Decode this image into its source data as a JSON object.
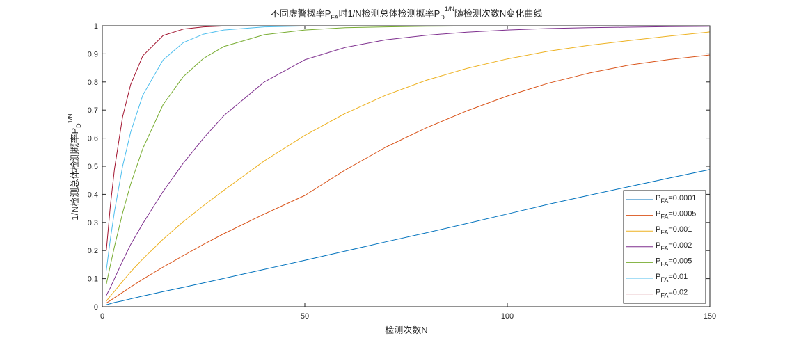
{
  "chart_data": {
    "type": "line",
    "title": {
      "part1": "不同虚警概率P",
      "part1_sub": "FA",
      "part2": "时1/N检测总体检测概率P",
      "part2_sub": "D",
      "part2_sup": "1/N",
      "part3": "随检测次数N变化曲线"
    },
    "xlabel": "检测次数N",
    "ylabel": {
      "main": "1/N检测总体检测概率P",
      "sub": "D",
      "sup": "1/N"
    },
    "xlim": [
      0,
      150
    ],
    "ylim": [
      0,
      1
    ],
    "xticks": [
      0,
      50,
      100,
      150
    ],
    "yticks": [
      0,
      0.1,
      0.2,
      0.3,
      0.4,
      0.5,
      0.6,
      0.7,
      0.8,
      0.9,
      1
    ],
    "xtick_labels": [
      "0",
      "50",
      "100",
      "150"
    ],
    "ytick_labels": [
      "0",
      "0.1",
      "0.2",
      "0.3",
      "0.4",
      "0.5",
      "0.6",
      "0.7",
      "0.8",
      "0.9",
      "1"
    ],
    "grid": false,
    "legend_position": "bottom-right",
    "x": [
      1,
      2,
      3,
      5,
      7,
      10,
      15,
      20,
      25,
      30,
      40,
      50,
      60,
      70,
      80,
      90,
      100,
      110,
      120,
      130,
      140,
      150
    ],
    "series": [
      {
        "name_prefix": "P",
        "name_sub": "FA",
        "name_suffix": "=0.0001",
        "color": "#0072BD",
        "values": [
          0.007,
          0.011,
          0.015,
          0.021,
          0.028,
          0.038,
          0.054,
          0.069,
          0.085,
          0.101,
          0.133,
          0.165,
          0.198,
          0.231,
          0.263,
          0.296,
          0.33,
          0.364,
          0.396,
          0.427,
          0.458,
          0.488
        ]
      },
      {
        "name_prefix": "P",
        "name_sub": "FA",
        "name_suffix": "=0.0005",
        "color": "#D95319",
        "values": [
          0.013,
          0.022,
          0.032,
          0.051,
          0.07,
          0.098,
          0.141,
          0.182,
          0.222,
          0.26,
          0.33,
          0.396,
          0.487,
          0.568,
          0.637,
          0.697,
          0.75,
          0.795,
          0.831,
          0.86,
          0.88,
          0.896
        ]
      },
      {
        "name_prefix": "P",
        "name_sub": "FA",
        "name_suffix": "=0.001",
        "color": "#EDB120",
        "values": [
          0.02,
          0.038,
          0.055,
          0.09,
          0.124,
          0.17,
          0.24,
          0.303,
          0.36,
          0.414,
          0.519,
          0.61,
          0.688,
          0.753,
          0.806,
          0.848,
          0.882,
          0.909,
          0.93,
          0.947,
          0.963,
          0.978
        ]
      },
      {
        "name_prefix": "P",
        "name_sub": "FA",
        "name_suffix": "=0.002",
        "color": "#7E2F8E",
        "values": [
          0.04,
          0.068,
          0.1,
          0.162,
          0.221,
          0.296,
          0.41,
          0.511,
          0.6,
          0.68,
          0.8,
          0.879,
          0.923,
          0.95,
          0.966,
          0.977,
          0.985,
          0.99,
          0.993,
          0.995,
          0.997,
          0.998
        ]
      },
      {
        "name_prefix": "P",
        "name_sub": "FA",
        "name_suffix": "=0.005",
        "color": "#77AC30",
        "values": [
          0.08,
          0.148,
          0.214,
          0.333,
          0.436,
          0.563,
          0.719,
          0.819,
          0.884,
          0.926,
          0.968,
          0.985,
          0.993,
          0.996,
          0.998,
          0.999,
          0.999,
          1.0,
          1.0,
          1.0,
          1.0,
          1.0
        ]
      },
      {
        "name_prefix": "P",
        "name_sub": "FA",
        "name_suffix": "=0.01",
        "color": "#4DBEEE",
        "values": [
          0.13,
          0.241,
          0.339,
          0.499,
          0.621,
          0.753,
          0.878,
          0.94,
          0.97,
          0.985,
          0.996,
          0.999,
          1.0,
          1.0,
          1.0,
          1.0,
          1.0,
          1.0,
          1.0,
          1.0,
          1.0,
          1.0
        ]
      },
      {
        "name_prefix": "P",
        "name_sub": "FA",
        "name_suffix": "=0.02",
        "color": "#A2142F",
        "values": [
          0.2,
          0.36,
          0.49,
          0.675,
          0.79,
          0.893,
          0.965,
          0.988,
          0.996,
          0.999,
          1.0,
          1.0,
          1.0,
          1.0,
          1.0,
          1.0,
          1.0,
          1.0,
          1.0,
          1.0,
          1.0,
          1.0
        ]
      }
    ]
  }
}
